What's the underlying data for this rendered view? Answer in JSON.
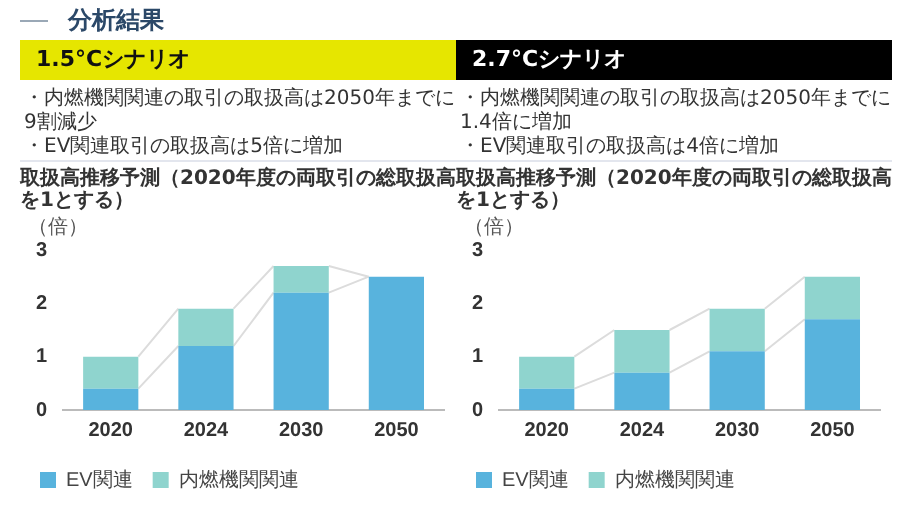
{
  "chart_data": [
    {
      "type": "other",
      "title": "分析結果"
    },
    {
      "type": "bar",
      "title": "1.5°Cシナリオ",
      "annotations": [
        "・内燃機関関連の取引の取扱高は2050年までに9割減少",
        "・EV関連取引の取扱高は5倍に増加"
      ],
      "subtitle": "取扱高推移予測（2020年度の両取引の総取扱高を1とする）",
      "ylabel": "（倍）",
      "categories": [
        "2020",
        "2024",
        "2030",
        "2050"
      ],
      "stacked": true,
      "series": [
        {
          "name": "EV関連",
          "color": "#58b3dd",
          "values": [
            0.4,
            1.2,
            2.2,
            2.5
          ]
        },
        {
          "name": "内燃機関関連",
          "color": "#8fd4ce",
          "values": [
            0.6,
            0.7,
            0.5,
            0
          ]
        }
      ],
      "ylim": [
        0,
        3
      ],
      "yticks": [
        0,
        1,
        2,
        3
      ],
      "grid": false,
      "legend": "bottom left"
    },
    {
      "type": "bar",
      "title": "2.7°Cシナリオ",
      "annotations": [
        "・内燃機関関連の取引の取扱高は2050年までに1.4倍に増加",
        "・EV関連取引の取扱高は4倍に増加"
      ],
      "subtitle": "取扱高推移予測（2020年度の両取引の総取扱高を1とする）",
      "ylabel": "（倍）",
      "categories": [
        "2020",
        "2024",
        "2030",
        "2050"
      ],
      "stacked": true,
      "series": [
        {
          "name": "EV関連",
          "color": "#58b3dd",
          "values": [
            0.4,
            0.7,
            1.1,
            1.7
          ]
        },
        {
          "name": "内燃機関関連",
          "color": "#8fd4ce",
          "values": [
            0.6,
            0.8,
            0.8,
            0.8
          ]
        }
      ],
      "ylim": [
        0,
        3
      ],
      "yticks": [
        0,
        1,
        2,
        3
      ],
      "grid": false,
      "legend": "bottom left"
    }
  ]
}
